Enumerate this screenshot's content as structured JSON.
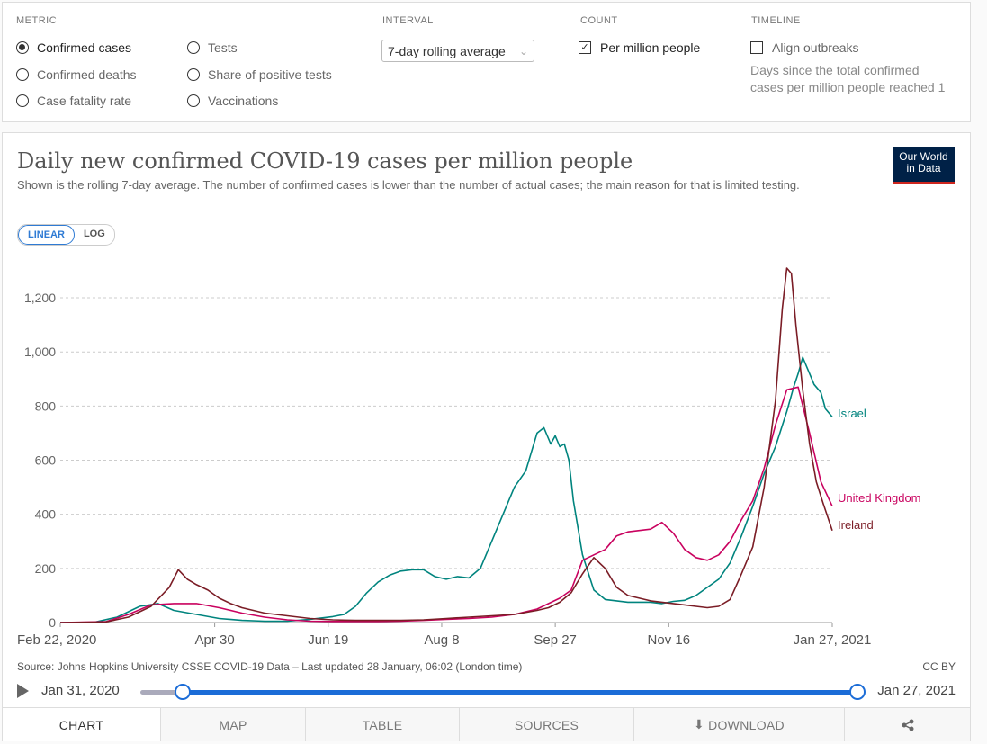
{
  "controls": {
    "metric_label": "METRIC",
    "metric_options": [
      "Confirmed cases",
      "Confirmed deaths",
      "Case fatality rate",
      "Tests",
      "Share of positive tests",
      "Vaccinations"
    ],
    "interval_label": "INTERVAL",
    "interval_value": "7-day rolling average",
    "count_label": "COUNT",
    "count_option": "Per million people",
    "timeline_label": "TIMELINE",
    "timeline_option": "Align outbreaks",
    "timeline_hint_1": "Days since the total confirmed",
    "timeline_hint_2": "cases per million people reached 1"
  },
  "header": {
    "title": "Daily new confirmed COVID-19 cases per million people",
    "subtitle": "Shown is the rolling 7-day average. The number of confirmed cases is lower than the number of actual cases; the main reason for that is limited testing.",
    "logo_line1": "Our World",
    "logo_line2": "in Data",
    "scale_linear": "LINEAR",
    "scale_log": "LOG"
  },
  "footer": {
    "source": "Source: Johns Hopkins University CSSE COVID-19 Data – Last updated 28 January, 06:02 (London time)",
    "license": "CC BY",
    "timeline_start": "Jan 31, 2020",
    "timeline_end": "Jan 27, 2021"
  },
  "tabs": [
    "CHART",
    "MAP",
    "TABLE",
    "SOURCES",
    "DOWNLOAD"
  ],
  "colors": {
    "israel": "#00847e",
    "uk": "#c9025f",
    "ireland": "#7b1d26",
    "accent": "#1b6cd7"
  },
  "chart_data": {
    "type": "line",
    "title": "Daily new confirmed COVID-19 cases per million people",
    "ylabel": "",
    "xlabel": "",
    "ylim": [
      0,
      1300
    ],
    "yticks": [
      0,
      200,
      400,
      600,
      800,
      1000,
      1200
    ],
    "ytick_labels": [
      "0",
      "200",
      "400",
      "600",
      "800",
      "1,000",
      "1,200"
    ],
    "xlim": [
      0,
      340
    ],
    "xticks": [
      {
        "day": 0,
        "label": "Feb 22, 2020"
      },
      {
        "day": 68,
        "label": "Apr 30"
      },
      {
        "day": 118,
        "label": "Jun 19"
      },
      {
        "day": 168,
        "label": "Aug 8"
      },
      {
        "day": 218,
        "label": "Sep 27"
      },
      {
        "day": 268,
        "label": "Nov 16"
      },
      {
        "day": 340,
        "label": "Jan 27, 2021"
      }
    ],
    "series": [
      {
        "name": "Israel",
        "color": "#00847e",
        "x": [
          0,
          15,
          25,
          35,
          43,
          50,
          60,
          70,
          80,
          90,
          100,
          110,
          120,
          125,
          130,
          135,
          140,
          145,
          150,
          155,
          160,
          165,
          170,
          175,
          180,
          185,
          190,
          195,
          200,
          205,
          210,
          213,
          216,
          218,
          220,
          222,
          224,
          226,
          230,
          235,
          240,
          245,
          250,
          255,
          260,
          265,
          270,
          275,
          280,
          285,
          290,
          295,
          300,
          305,
          310,
          315,
          320,
          323,
          325,
          327,
          330,
          332,
          335,
          337,
          340
        ],
        "y": [
          0,
          1,
          20,
          60,
          70,
          45,
          30,
          15,
          8,
          5,
          5,
          12,
          22,
          30,
          60,
          110,
          150,
          175,
          190,
          195,
          195,
          170,
          160,
          170,
          165,
          200,
          300,
          400,
          500,
          560,
          700,
          720,
          660,
          690,
          650,
          660,
          600,
          450,
          250,
          120,
          85,
          80,
          75,
          75,
          75,
          70,
          78,
          82,
          100,
          130,
          160,
          220,
          320,
          430,
          550,
          650,
          780,
          870,
          920,
          980,
          920,
          880,
          850,
          790,
          760
        ]
      },
      {
        "name": "United Kingdom",
        "color": "#c9025f",
        "x": [
          0,
          20,
          30,
          40,
          50,
          60,
          70,
          80,
          90,
          100,
          110,
          120,
          130,
          140,
          150,
          160,
          170,
          180,
          190,
          200,
          210,
          220,
          225,
          230,
          235,
          240,
          245,
          250,
          255,
          260,
          265,
          270,
          275,
          280,
          285,
          290,
          295,
          300,
          305,
          310,
          315,
          320,
          325,
          330,
          335,
          340
        ],
        "y": [
          0,
          3,
          30,
          65,
          70,
          70,
          55,
          35,
          20,
          10,
          5,
          4,
          4,
          4,
          5,
          8,
          12,
          15,
          20,
          30,
          50,
          90,
          120,
          230,
          250,
          270,
          320,
          335,
          340,
          345,
          370,
          330,
          270,
          240,
          230,
          250,
          300,
          380,
          450,
          570,
          730,
          860,
          870,
          700,
          520,
          430
        ]
      },
      {
        "name": "Ireland",
        "color": "#7b1d26",
        "x": [
          0,
          20,
          30,
          40,
          48,
          52,
          56,
          60,
          65,
          70,
          75,
          80,
          90,
          100,
          110,
          120,
          130,
          140,
          150,
          160,
          170,
          180,
          190,
          200,
          210,
          215,
          220,
          225,
          230,
          235,
          240,
          245,
          250,
          255,
          260,
          265,
          270,
          275,
          280,
          285,
          290,
          295,
          300,
          305,
          310,
          315,
          318,
          320,
          322,
          324,
          327,
          330,
          333,
          336,
          340
        ],
        "y": [
          0,
          2,
          20,
          60,
          130,
          195,
          160,
          140,
          120,
          90,
          70,
          55,
          35,
          25,
          15,
          10,
          8,
          8,
          8,
          10,
          15,
          20,
          25,
          30,
          45,
          55,
          75,
          110,
          180,
          240,
          200,
          130,
          100,
          90,
          80,
          75,
          70,
          65,
          60,
          55,
          60,
          85,
          180,
          280,
          500,
          820,
          1160,
          1310,
          1290,
          1100,
          860,
          660,
          520,
          440,
          340
        ]
      }
    ]
  }
}
